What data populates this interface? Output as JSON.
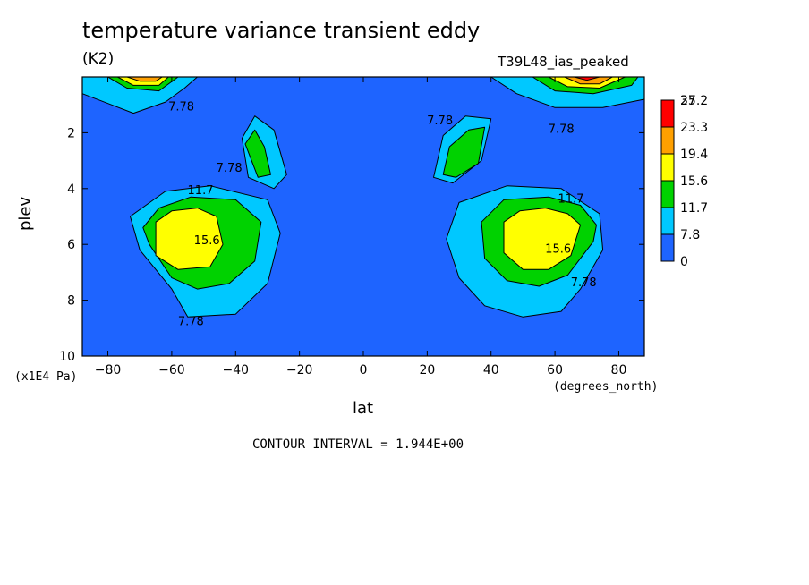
{
  "header": {
    "title": "temperature variance transient eddy",
    "units": "(K2)",
    "run": "T39L48_ias_peaked"
  },
  "axes": {
    "xlabel": "lat",
    "ylabel": "plev",
    "xunits": "(degrees_north)",
    "yunits": "(x1E4 Pa)"
  },
  "footer": {
    "contour_interval": "CONTOUR INTERVAL = 1.944E+00"
  },
  "chart_data": {
    "type": "heatmap",
    "subtype": "filled-contour",
    "title": "temperature variance transient eddy",
    "xlabel": "lat",
    "ylabel": "plev",
    "xlim": [
      -88,
      88
    ],
    "ylim": [
      10,
      0
    ],
    "y_inverted": true,
    "x_ticks": [
      -80,
      -60,
      -40,
      -20,
      0,
      20,
      40,
      60,
      80
    ],
    "y_ticks": [
      2,
      4,
      6,
      8,
      10
    ],
    "colorbar": {
      "levels": [
        "0",
        "7.8",
        "11.7",
        "15.6",
        "19.4",
        "23.3",
        "27.2",
        "35"
      ],
      "colors": [
        "#1e64ff",
        "#00c8ff",
        "#00d200",
        "#ffff00",
        "#ffa000",
        "#ff0000"
      ]
    },
    "contour_labels": [
      {
        "text": "7.78",
        "x": -57,
        "y": 1.2
      },
      {
        "text": "7.78",
        "x": -42,
        "y": 3.4
      },
      {
        "text": "11.7",
        "x": -51,
        "y": 4.2
      },
      {
        "text": "15.6",
        "x": -49,
        "y": 6.0
      },
      {
        "text": "7.78",
        "x": -54,
        "y": 8.9
      },
      {
        "text": "7.78",
        "x": 24,
        "y": 1.7
      },
      {
        "text": "7.78",
        "x": 62,
        "y": 2.0
      },
      {
        "text": "11.7",
        "x": 65,
        "y": 4.5
      },
      {
        "text": "15.6",
        "x": 61,
        "y": 6.3
      },
      {
        "text": "7.78",
        "x": 69,
        "y": 7.5
      }
    ],
    "regions": [
      {
        "level": 7.8,
        "points": [
          [
            -70,
            6.2
          ],
          [
            -60,
            7.6
          ],
          [
            -55,
            8.6
          ],
          [
            -40,
            8.5
          ],
          [
            -30,
            7.4
          ],
          [
            -26,
            5.6
          ],
          [
            -30,
            4.4
          ],
          [
            -48,
            3.9
          ],
          [
            -62,
            4.1
          ],
          [
            -73,
            5.0
          ]
        ]
      },
      {
        "level": 11.7,
        "points": [
          [
            -67,
            6.0
          ],
          [
            -60,
            7.2
          ],
          [
            -52,
            7.6
          ],
          [
            -42,
            7.4
          ],
          [
            -34,
            6.6
          ],
          [
            -32,
            5.2
          ],
          [
            -40,
            4.4
          ],
          [
            -54,
            4.3
          ],
          [
            -64,
            4.7
          ],
          [
            -69,
            5.4
          ]
        ]
      },
      {
        "level": 15.6,
        "points": [
          [
            -65,
            5.2
          ],
          [
            -65,
            6.4
          ],
          [
            -58,
            6.9
          ],
          [
            -48,
            6.8
          ],
          [
            -44,
            6.0
          ],
          [
            -46,
            5.0
          ],
          [
            -52,
            4.7
          ],
          [
            -60,
            4.8
          ]
        ]
      },
      {
        "level": 7.8,
        "points": [
          [
            75,
            6.2
          ],
          [
            68,
            7.6
          ],
          [
            62,
            8.4
          ],
          [
            50,
            8.6
          ],
          [
            38,
            8.2
          ],
          [
            30,
            7.2
          ],
          [
            26,
            5.8
          ],
          [
            30,
            4.5
          ],
          [
            45,
            3.9
          ],
          [
            62,
            4.0
          ],
          [
            74,
            4.9
          ]
        ]
      },
      {
        "level": 11.7,
        "points": [
          [
            72,
            5.9
          ],
          [
            64,
            7.1
          ],
          [
            55,
            7.5
          ],
          [
            45,
            7.3
          ],
          [
            38,
            6.5
          ],
          [
            37,
            5.2
          ],
          [
            44,
            4.4
          ],
          [
            58,
            4.3
          ],
          [
            68,
            4.6
          ],
          [
            73,
            5.3
          ]
        ]
      },
      {
        "level": 15.6,
        "points": [
          [
            68,
            5.3
          ],
          [
            65,
            6.4
          ],
          [
            58,
            6.9
          ],
          [
            50,
            6.9
          ],
          [
            44,
            6.3
          ],
          [
            44,
            5.2
          ],
          [
            49,
            4.8
          ],
          [
            57,
            4.7
          ],
          [
            64,
            4.9
          ]
        ]
      },
      {
        "level": 7.8,
        "points": [
          [
            -38,
            2.2
          ],
          [
            -34,
            1.4
          ],
          [
            -28,
            1.9
          ],
          [
            -24,
            3.5
          ],
          [
            -28,
            4.0
          ],
          [
            -36,
            3.6
          ]
        ]
      },
      {
        "level": 11.7,
        "points": [
          [
            -37,
            2.4
          ],
          [
            -34,
            1.9
          ],
          [
            -31,
            2.5
          ],
          [
            -29,
            3.5
          ],
          [
            -33,
            3.6
          ]
        ]
      },
      {
        "level": 7.8,
        "points": [
          [
            22,
            3.6
          ],
          [
            25,
            2.1
          ],
          [
            32,
            1.4
          ],
          [
            40,
            1.5
          ],
          [
            37,
            3.0
          ],
          [
            28,
            3.8
          ]
        ]
      },
      {
        "level": 11.7,
        "points": [
          [
            25,
            3.5
          ],
          [
            27,
            2.5
          ],
          [
            33,
            1.9
          ],
          [
            38,
            1.8
          ],
          [
            36,
            3.1
          ],
          [
            29,
            3.6
          ]
        ]
      },
      {
        "level": 7.8,
        "points": [
          [
            -88,
            0
          ],
          [
            -88,
            0.6
          ],
          [
            -72,
            1.3
          ],
          [
            -62,
            0.9
          ],
          [
            -56,
            0.4
          ],
          [
            -52,
            0
          ]
        ]
      },
      {
        "level": 11.7,
        "points": [
          [
            -80,
            0
          ],
          [
            -74,
            0.4
          ],
          [
            -64,
            0.5
          ],
          [
            -58,
            0
          ]
        ]
      },
      {
        "level": 15.6,
        "points": [
          [
            -77,
            0
          ],
          [
            -72,
            0.3
          ],
          [
            -64,
            0.3
          ],
          [
            -61,
            0
          ]
        ]
      },
      {
        "level": 19.4,
        "points": [
          [
            -74,
            0
          ],
          [
            -70,
            0.15
          ],
          [
            -65,
            0.15
          ],
          [
            -63,
            0
          ]
        ]
      },
      {
        "level": 7.8,
        "points": [
          [
            40,
            0
          ],
          [
            48,
            0.6
          ],
          [
            60,
            1.1
          ],
          [
            75,
            1.1
          ],
          [
            88,
            0.8
          ],
          [
            88,
            0
          ]
        ]
      },
      {
        "level": 11.7,
        "points": [
          [
            53,
            0
          ],
          [
            60,
            0.5
          ],
          [
            72,
            0.6
          ],
          [
            84,
            0.3
          ],
          [
            86,
            0
          ]
        ]
      },
      {
        "level": 15.6,
        "points": [
          [
            58,
            0
          ],
          [
            64,
            0.35
          ],
          [
            74,
            0.4
          ],
          [
            82,
            0
          ]
        ]
      },
      {
        "level": 19.4,
        "points": [
          [
            63,
            0
          ],
          [
            68,
            0.25
          ],
          [
            74,
            0.25
          ],
          [
            78,
            0
          ]
        ]
      },
      {
        "level": 23.3,
        "points": [
          [
            66,
            0
          ],
          [
            70,
            0.12
          ],
          [
            74,
            0
          ]
        ]
      }
    ]
  }
}
